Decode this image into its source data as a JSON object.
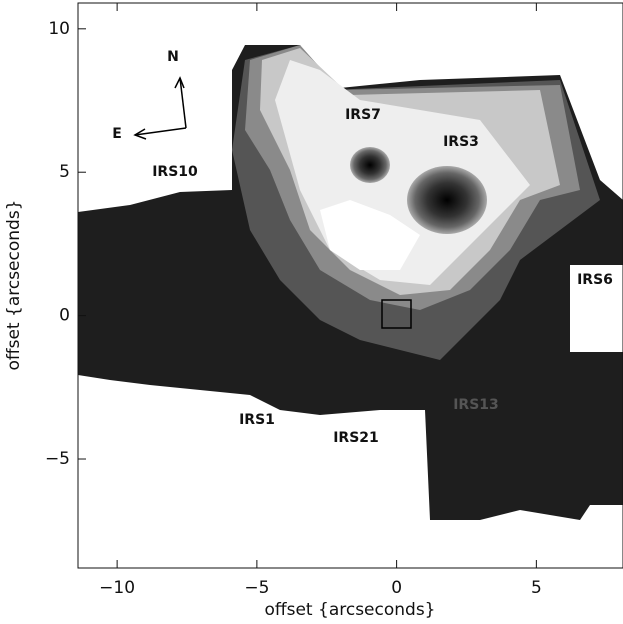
{
  "chart_data": {
    "type": "image",
    "xlabel": "offset {arcseconds}",
    "ylabel": "offset {arcseconds}",
    "xlim": [
      -11.4,
      8.1
    ],
    "ylim": [
      -8.8,
      10.9
    ],
    "xticks": [
      {
        "value": -10,
        "label": "−10"
      },
      {
        "value": -5,
        "label": "−5"
      },
      0,
      5
    ],
    "yticks": [
      {
        "value": -5,
        "label": "−5"
      },
      0,
      5,
      10
    ],
    "annotations": [
      "N",
      "E",
      "IRS7",
      "IRS3",
      "IRS10",
      "IRS6",
      "IRS1",
      "IRS21",
      "IRS13"
    ]
  }
}
